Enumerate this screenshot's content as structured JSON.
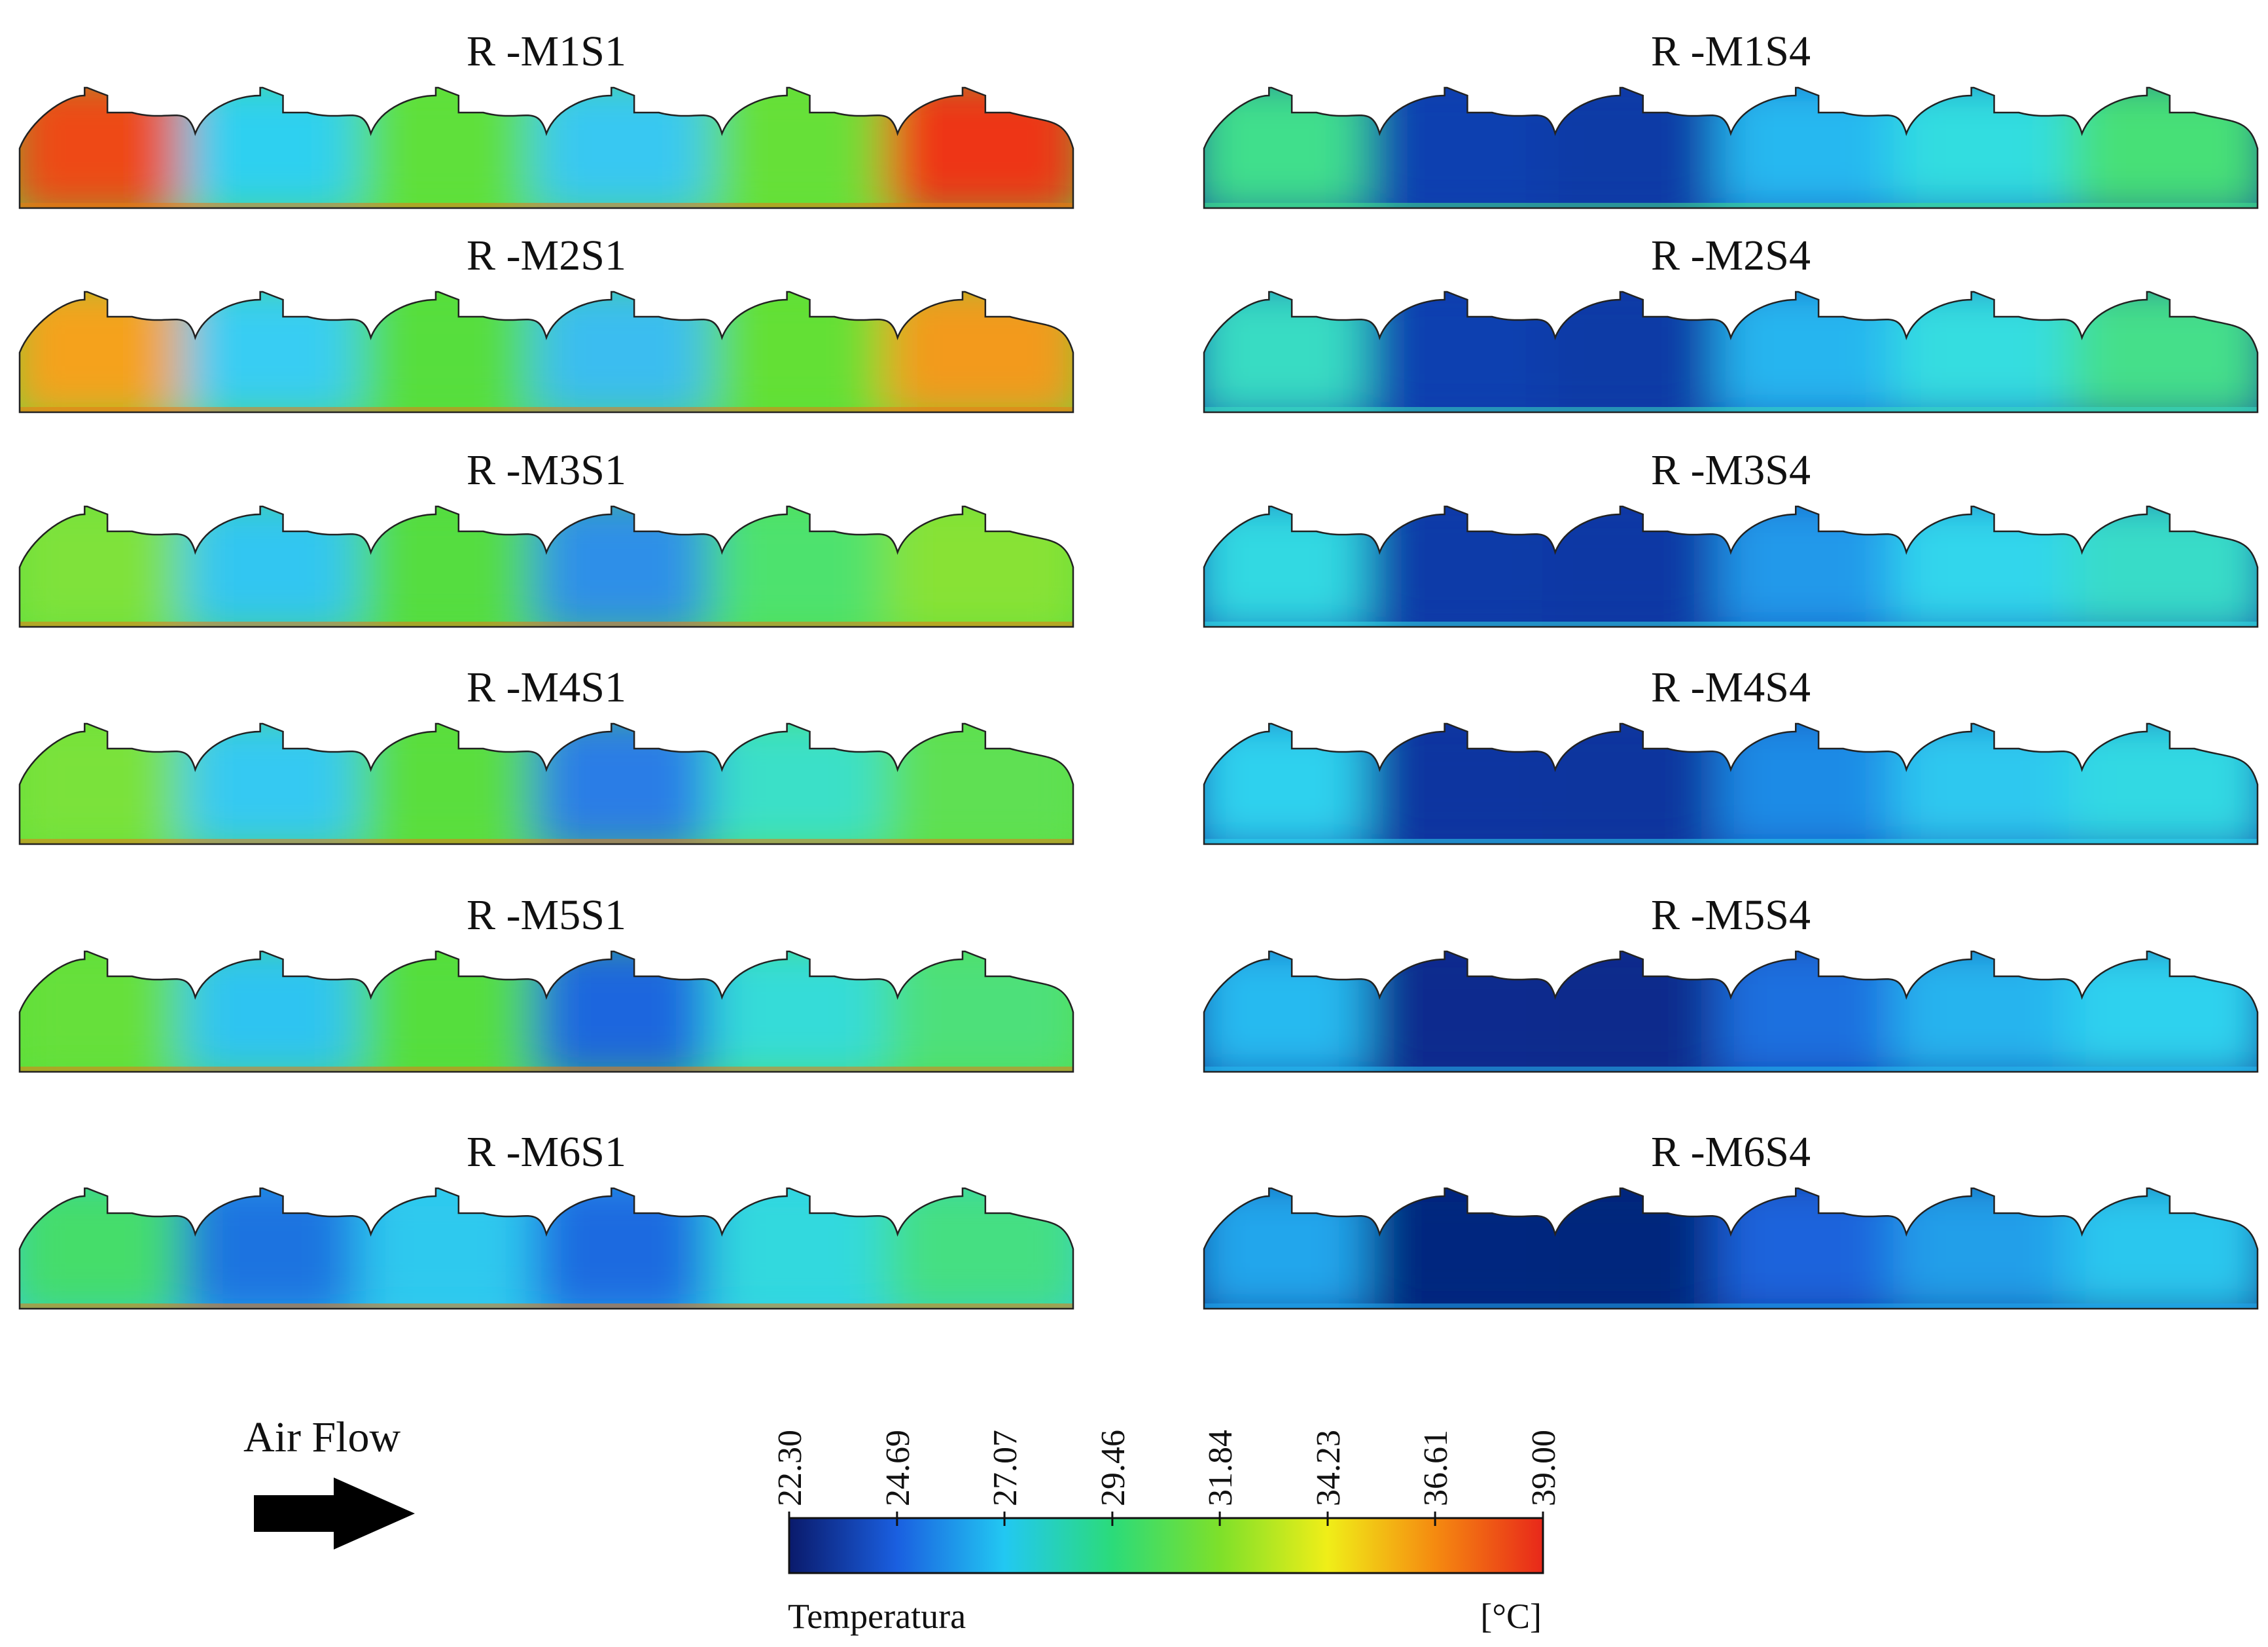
{
  "figure": {
    "panels": [
      {
        "label": "R -M1S1",
        "colors": [
          "#ee4a12",
          "#2fd0f0",
          "#5ee03a",
          "#38c8f2",
          "#66e037",
          "#ee3512"
        ]
      },
      {
        "label": "R -M2S1",
        "colors": [
          "#f5a21a",
          "#38cdf3",
          "#56de3c",
          "#3bbdf0",
          "#64e035",
          "#f39a1c"
        ]
      },
      {
        "label": "R -M3S1",
        "colors": [
          "#7fe23a",
          "#33c6f1",
          "#55dd40",
          "#2f8fe8",
          "#4ee26e",
          "#88e236"
        ]
      },
      {
        "label": "R -M4S1",
        "colors": [
          "#7ae23a",
          "#34c9f2",
          "#5ade3c",
          "#2b7de6",
          "#3be0c8",
          "#5ee052"
        ]
      },
      {
        "label": "R -M5S1",
        "colors": [
          "#66e03a",
          "#2dc4f1",
          "#55de3c",
          "#1f66de",
          "#36dcd8",
          "#4ee07a"
        ]
      },
      {
        "label": "R -M6S1",
        "colors": [
          "#45dd6a",
          "#1c73e0",
          "#2fc9ee",
          "#1c6ae0",
          "#33d9de",
          "#45df82"
        ]
      },
      {
        "label": "R -M1S4",
        "colors": [
          "#3fdf8c",
          "#0b3fb0",
          "#0a3aa6",
          "#28b8f0",
          "#33dde0",
          "#46e077"
        ]
      },
      {
        "label": "R -M2S4",
        "colors": [
          "#38dcc3",
          "#0b3fb0",
          "#0a3aa6",
          "#27b5ef",
          "#34dde0",
          "#44df8a"
        ]
      },
      {
        "label": "R -M3S4",
        "colors": [
          "#33d9e2",
          "#0b3aa8",
          "#0a39a4",
          "#2399ea",
          "#33d6ec",
          "#38dcc8"
        ]
      },
      {
        "label": "R -M4S4",
        "colors": [
          "#2fd1ee",
          "#0a35a0",
          "#0a349e",
          "#1f8be6",
          "#2ec8ef",
          "#33d9e3"
        ]
      },
      {
        "label": "R -M5S4",
        "colors": [
          "#27baf0",
          "#072c8e",
          "#072b8c",
          "#1b6fdf",
          "#26b4ee",
          "#2fd2ee"
        ]
      },
      {
        "label": "R -M6S4",
        "colors": [
          "#20a6ec",
          "#06287f",
          "#06277d",
          "#1a64dc",
          "#229fe9",
          "#2bc7ee"
        ]
      }
    ]
  },
  "colorbar": {
    "title": "Temperatura",
    "unit": "[°C]",
    "min": 22.3,
    "max": 39.0,
    "ticks": [
      "22.30",
      "24.69",
      "27.07",
      "29.46",
      "31.84",
      "34.23",
      "36.61",
      "39.00"
    ],
    "stops": [
      "#0a1a6b",
      "#1a5fe0",
      "#22c8f2",
      "#2bdb7a",
      "#7ee02a",
      "#f0ee18",
      "#f58a10",
      "#e8281a"
    ]
  },
  "airflow": {
    "label": "Air Flow"
  }
}
